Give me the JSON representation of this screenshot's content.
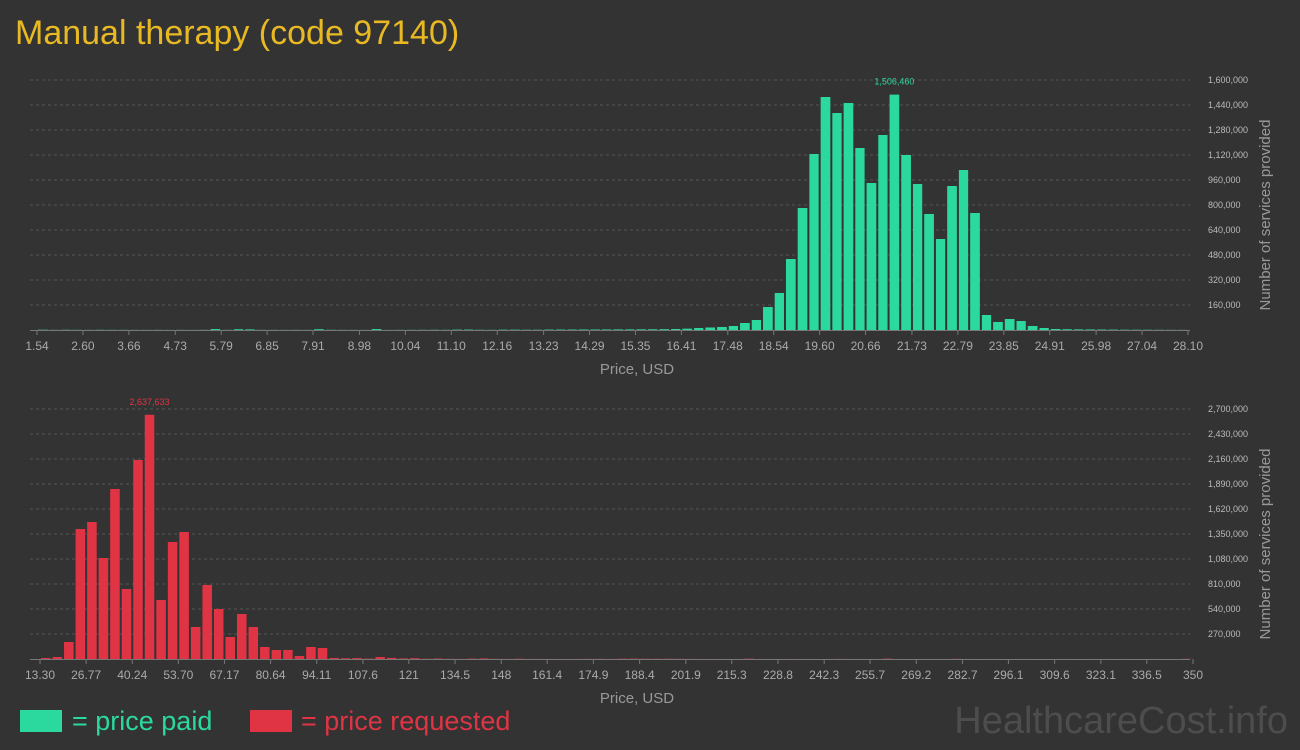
{
  "title": "Manual therapy (code 97140)",
  "watermark": "HealthcareCost.info",
  "legend": [
    {
      "label": "= price paid",
      "color": "#2bd99f"
    },
    {
      "label": "= price requested",
      "color": "#e03444"
    }
  ],
  "chart_data": [
    {
      "type": "histogram",
      "color": "#2bd99f",
      "xlabel": "Price, USD",
      "ylabel": "Number of services provided",
      "grid": true,
      "xlim": [
        1.54,
        28.1
      ],
      "xticks": [
        1.54,
        {
          "value": 2.6,
          "label": "2.60"
        },
        3.66,
        4.73,
        5.79,
        6.85,
        7.91,
        8.98,
        10.04,
        {
          "value": 11.1,
          "label": "11.10"
        },
        12.16,
        13.23,
        14.29,
        15.35,
        16.41,
        17.48,
        18.54,
        {
          "value": 19.6,
          "label": "19.60"
        },
        20.66,
        21.73,
        22.79,
        23.85,
        24.91,
        25.98,
        27.04,
        {
          "value": 28.1,
          "label": "28.10"
        }
      ],
      "ylim": [
        0,
        1600000
      ],
      "yticks": [
        {
          "value": 160000,
          "label": "160,000"
        },
        {
          "value": 320000,
          "label": "320,000"
        },
        {
          "value": 480000,
          "label": "480,000"
        },
        {
          "value": 640000,
          "label": "640,000"
        },
        {
          "value": 800000,
          "label": "800,000"
        },
        {
          "value": 960000,
          "label": "960,000"
        },
        {
          "value": 1120000,
          "label": "1,120,000"
        },
        {
          "value": 1280000,
          "label": "1,280,000"
        },
        {
          "value": 1440000,
          "label": "1,440,000"
        },
        {
          "value": 1600000,
          "label": "1,600,000"
        }
      ],
      "bins": [
        1.54,
        1.81,
        2.07,
        2.34,
        2.6,
        2.87,
        3.13,
        3.4,
        3.66,
        3.93,
        4.2,
        4.46,
        4.73,
        4.99,
        5.26,
        5.52,
        5.79,
        6.06,
        6.32,
        6.59,
        6.85,
        7.12,
        7.38,
        7.65,
        7.91,
        8.18,
        8.45,
        8.71,
        8.98,
        9.24,
        9.51,
        9.77,
        10.04,
        10.31,
        10.57,
        10.84,
        11.1,
        11.37,
        11.63,
        11.9,
        12.16,
        12.43,
        12.7,
        12.96,
        13.23,
        13.49,
        13.76,
        14.02,
        14.29,
        14.55,
        14.82,
        15.09,
        15.35,
        15.62,
        15.88,
        16.15,
        16.41,
        16.68,
        16.94,
        17.21,
        17.48,
        17.74,
        18.01,
        18.27,
        18.54,
        18.8,
        19.07,
        19.34,
        19.6,
        19.87,
        20.13,
        20.4,
        20.66,
        20.93,
        21.19,
        21.46,
        21.73,
        21.99,
        22.26,
        22.52,
        22.79,
        23.05,
        23.32,
        23.58,
        23.85,
        24.12,
        24.38,
        24.65,
        24.91,
        25.18,
        25.44,
        25.71,
        25.98,
        26.24,
        26.51,
        26.77,
        27.04,
        27.3,
        27.57,
        27.83,
        28.1
      ],
      "values": [
        2000,
        1000,
        1500,
        1000,
        800,
        1200,
        900,
        1000,
        700,
        600,
        900,
        500,
        800,
        600,
        1100,
        6000,
        900,
        5000,
        4000,
        1000,
        800,
        700,
        900,
        700,
        5000,
        1200,
        900,
        700,
        600,
        6000,
        500,
        900,
        1000,
        1200,
        1500,
        1100,
        2500,
        2800,
        1300,
        1000,
        2100,
        2400,
        1700,
        1600,
        2800,
        2900,
        3100,
        3300,
        3200,
        3500,
        3800,
        4000,
        4300,
        4700,
        5200,
        6500,
        8500,
        12800,
        16000,
        19200,
        25600,
        44800,
        64000,
        147200,
        236800,
        454400,
        780800,
        1126400,
        1491200,
        1388800,
        1452800,
        1164800,
        940800,
        1248000,
        1506460,
        1120000,
        934400,
        742400,
        582400,
        921600,
        1024000,
        748800,
        96000,
        51200,
        70400,
        57600,
        25600,
        12800,
        6400,
        5000,
        4000,
        3500,
        3000,
        2500,
        2000,
        1800,
        1500,
        1200,
        1000,
        800
      ],
      "value_labels": [
        null,
        null,
        null,
        null,
        null,
        null,
        null,
        null,
        null,
        null,
        null,
        null,
        null,
        null,
        null,
        null,
        null,
        null,
        null,
        null,
        null,
        null,
        null,
        null,
        null,
        null,
        null,
        null,
        null,
        null,
        null,
        null,
        null,
        null,
        null,
        null,
        null,
        null,
        null,
        null,
        null,
        null,
        null,
        null,
        null,
        null,
        null,
        null,
        null,
        null,
        null,
        null,
        null,
        null,
        null,
        null,
        null,
        null,
        null,
        null,
        null,
        null,
        null,
        null,
        null,
        null,
        null,
        null,
        null,
        null,
        null,
        null,
        null,
        null,
        "1,506,460",
        null,
        null,
        null,
        null,
        null,
        null,
        null,
        null,
        null,
        null,
        null,
        null,
        null,
        null,
        null,
        null,
        null,
        null,
        null,
        null,
        null,
        null,
        null,
        null,
        null
      ]
    },
    {
      "type": "histogram",
      "color": "#e03444",
      "xlabel": "Price, USD",
      "ylabel": "Number of services provided",
      "grid": true,
      "xlim": [
        13.3,
        350
      ],
      "xticks": [
        {
          "value": 13.3,
          "label": "13.30"
        },
        26.77,
        40.24,
        {
          "value": 53.7,
          "label": "53.70"
        },
        67.17,
        80.64,
        94.11,
        107.6,
        121,
        134.5,
        148,
        161.4,
        174.9,
        188.4,
        201.9,
        215.3,
        228.8,
        242.3,
        255.7,
        269.2,
        282.7,
        296.1,
        309.6,
        323.1,
        336.5,
        350
      ],
      "ylim": [
        0,
        2700000
      ],
      "yticks": [
        {
          "value": 270000,
          "label": "270,000"
        },
        {
          "value": 540000,
          "label": "540,000"
        },
        {
          "value": 810000,
          "label": "810,000"
        },
        {
          "value": 1080000,
          "label": "1,080,000"
        },
        {
          "value": 1350000,
          "label": "1,350,000"
        },
        {
          "value": 1620000,
          "label": "1,620,000"
        },
        {
          "value": 1890000,
          "label": "1,890,000"
        },
        {
          "value": 2160000,
          "label": "2,160,000"
        },
        {
          "value": 2430000,
          "label": "2,430,000"
        },
        {
          "value": 2700000,
          "label": "2,700,000"
        }
      ],
      "bins": [
        13.3,
        16.67,
        20.03,
        23.4,
        26.77,
        30.14,
        33.5,
        36.87,
        40.24,
        43.6,
        46.97,
        50.34,
        53.7,
        57.07,
        60.44,
        63.81,
        67.17,
        70.54,
        73.91,
        77.27,
        80.64,
        84.01,
        87.37,
        90.74,
        94.11,
        97.48,
        100.84,
        104.21,
        107.58,
        110.94,
        114.31,
        117.68,
        121.04,
        124.41,
        127.78,
        131.15,
        134.51,
        137.88,
        141.25,
        144.61,
        147.98,
        151.35,
        154.71,
        158.08,
        161.45,
        164.82,
        168.18,
        171.55,
        174.92,
        178.28,
        181.65,
        185.02,
        188.38,
        191.75,
        195.12,
        198.49,
        201.85,
        205.22,
        208.59,
        211.95,
        215.32,
        218.69,
        222.05,
        225.42,
        228.79,
        232.16,
        235.52,
        238.89,
        242.26,
        245.62,
        248.99,
        252.36,
        255.72,
        259.09,
        262.46,
        265.83,
        269.19,
        272.56,
        275.93,
        279.29,
        282.66,
        286.03,
        289.39,
        292.76,
        296.13,
        299.5,
        302.86,
        306.23,
        309.6,
        312.96,
        316.33,
        319.7,
        323.06,
        326.43,
        329.8,
        333.17,
        336.53,
        339.9,
        343.27,
        346.63,
        350
      ],
      "values": [
        10800,
        21600,
        183600,
        1404000,
        1479600,
        1090800,
        1836000,
        756000,
        2149200,
        2637633,
        637200,
        1263600,
        1371600,
        345600,
        799200,
        540000,
        237600,
        486000,
        345600,
        129600,
        97200,
        97200,
        32400,
        129600,
        118800,
        10800,
        8000,
        10000,
        4000,
        21600,
        12000,
        6000,
        9000,
        3000,
        5000,
        2000,
        1000,
        4000,
        6000,
        2000,
        1000,
        3000,
        1000,
        800,
        600,
        500,
        700,
        1500,
        2000,
        800,
        3000,
        4000,
        3000,
        2500,
        3000,
        2000,
        1000,
        700,
        600,
        500,
        400,
        3500,
        400,
        300,
        500,
        600,
        300,
        200,
        400,
        1500,
        300,
        200,
        300,
        4000,
        300,
        200,
        300,
        400,
        200,
        2000,
        300,
        200,
        300,
        200,
        100,
        300,
        200,
        200,
        300,
        200,
        100,
        200,
        300,
        200,
        100,
        200,
        300,
        200,
        100,
        2500
      ],
      "value_labels": [
        null,
        null,
        null,
        null,
        null,
        null,
        null,
        null,
        null,
        "2,637,633",
        null,
        null,
        null,
        null,
        null,
        null,
        null,
        null,
        null,
        null,
        null,
        null,
        null,
        null,
        null,
        null,
        null,
        null,
        null,
        null,
        null,
        null,
        null,
        null,
        null,
        null,
        null,
        null,
        null,
        null,
        null,
        null,
        null,
        null,
        null,
        null,
        null,
        null,
        null,
        null,
        null,
        null,
        null,
        null,
        null,
        null,
        null,
        null,
        null,
        null,
        null,
        null,
        null,
        null,
        null,
        null,
        null,
        null,
        null,
        null,
        null,
        null,
        null,
        null,
        null,
        null,
        null,
        null,
        null,
        null,
        null,
        null,
        null,
        null,
        null,
        null,
        null,
        null,
        null,
        null,
        null,
        null,
        null,
        null,
        null,
        null,
        null,
        null,
        null,
        null
      ]
    }
  ]
}
